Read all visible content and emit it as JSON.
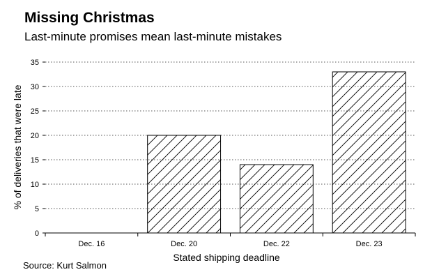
{
  "header": {
    "title": "Missing Christmas",
    "subtitle": "Last-minute promises mean last-minute mistakes"
  },
  "footer": {
    "source": "Source: Kurt Salmon"
  },
  "chart_data": {
    "type": "bar",
    "title": "Missing Christmas",
    "subtitle": "Last-minute promises mean last-minute mistakes",
    "xlabel": "Stated shipping deadline",
    "ylabel": "% of deliveries that were late",
    "categories": [
      "Dec. 16",
      "Dec. 20",
      "Dec. 22",
      "Dec. 23"
    ],
    "values": [
      0,
      20,
      14,
      33
    ],
    "ylim": [
      0,
      35
    ],
    "yticks": [
      0,
      5,
      10,
      15,
      20,
      25,
      30,
      35
    ],
    "grid": "horizontal dotted",
    "bar_fill": "diagonal hatch",
    "colors": {
      "bar_stroke": "#000000",
      "hatch": "#000000",
      "grid": "#555555"
    }
  }
}
